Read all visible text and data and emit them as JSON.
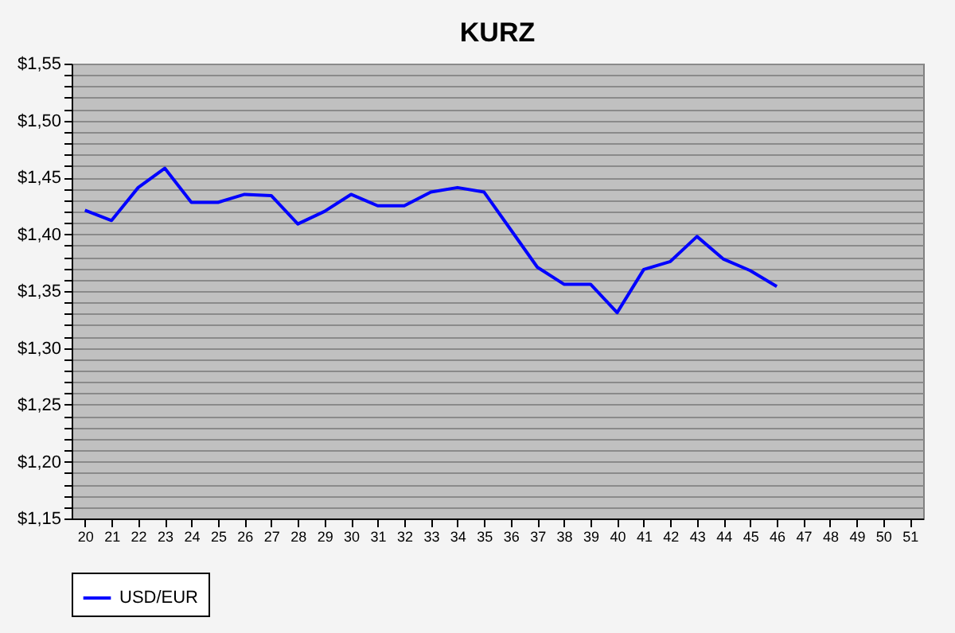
{
  "chart_data": {
    "type": "line",
    "title": "KURZ",
    "categories": [
      "20",
      "21",
      "22",
      "23",
      "24",
      "25",
      "26",
      "27",
      "28",
      "29",
      "30",
      "31",
      "32",
      "33",
      "34",
      "35",
      "36",
      "37",
      "38",
      "39",
      "40",
      "41",
      "42",
      "43",
      "44",
      "45",
      "46",
      "47",
      "48",
      "49",
      "50",
      "51"
    ],
    "series": [
      {
        "name": "USD/EUR",
        "color": "#0000ff",
        "values": [
          1.421,
          1.412,
          1.441,
          1.458,
          1.428,
          1.428,
          1.435,
          1.434,
          1.409,
          1.42,
          1.435,
          1.425,
          1.425,
          1.437,
          1.441,
          1.437,
          1.404,
          1.371,
          1.356,
          1.356,
          1.331,
          1.369,
          1.376,
          1.398,
          1.378,
          1.368,
          1.354,
          null,
          null,
          null,
          null,
          null
        ]
      }
    ],
    "ylim": [
      1.15,
      1.55
    ],
    "yticks": [
      {
        "value": 1.15,
        "label": "$1,15"
      },
      {
        "value": 1.16,
        "label": null
      },
      {
        "value": 1.17,
        "label": null
      },
      {
        "value": 1.18,
        "label": null
      },
      {
        "value": 1.19,
        "label": null
      },
      {
        "value": 1.2,
        "label": "$1,20"
      },
      {
        "value": 1.21,
        "label": null
      },
      {
        "value": 1.22,
        "label": null
      },
      {
        "value": 1.23,
        "label": null
      },
      {
        "value": 1.24,
        "label": null
      },
      {
        "value": 1.25,
        "label": "$1,25"
      },
      {
        "value": 1.26,
        "label": null
      },
      {
        "value": 1.27,
        "label": null
      },
      {
        "value": 1.28,
        "label": null
      },
      {
        "value": 1.29,
        "label": null
      },
      {
        "value": 1.3,
        "label": "$1,30"
      },
      {
        "value": 1.31,
        "label": null
      },
      {
        "value": 1.32,
        "label": null
      },
      {
        "value": 1.33,
        "label": null
      },
      {
        "value": 1.34,
        "label": null
      },
      {
        "value": 1.35,
        "label": "$1,35"
      },
      {
        "value": 1.36,
        "label": null
      },
      {
        "value": 1.37,
        "label": null
      },
      {
        "value": 1.38,
        "label": null
      },
      {
        "value": 1.39,
        "label": null
      },
      {
        "value": 1.4,
        "label": "$1,40"
      },
      {
        "value": 1.41,
        "label": null
      },
      {
        "value": 1.42,
        "label": null
      },
      {
        "value": 1.43,
        "label": null
      },
      {
        "value": 1.44,
        "label": null
      },
      {
        "value": 1.45,
        "label": "$1,45"
      },
      {
        "value": 1.46,
        "label": null
      },
      {
        "value": 1.47,
        "label": null
      },
      {
        "value": 1.48,
        "label": null
      },
      {
        "value": 1.49,
        "label": null
      },
      {
        "value": 1.5,
        "label": "$1,50"
      },
      {
        "value": 1.51,
        "label": null
      },
      {
        "value": 1.52,
        "label": null
      },
      {
        "value": 1.53,
        "label": null
      },
      {
        "value": 1.54,
        "label": null
      },
      {
        "value": 1.55,
        "label": "$1,55"
      }
    ],
    "grid": "y",
    "legend": "bottom",
    "marker": "none",
    "line_style": "solid"
  }
}
